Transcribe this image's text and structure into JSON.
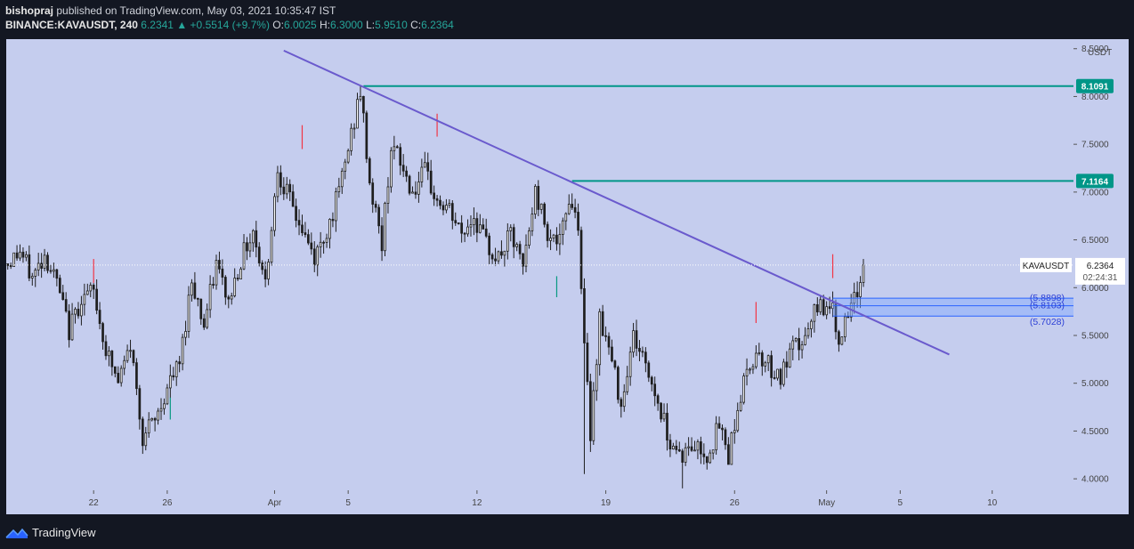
{
  "header": {
    "author": "bishopraj",
    "published_text": "published on TradingView.com, May 03, 2021 10:35:47 IST",
    "symbol": "BINANCE:KAVAUSDT, 240",
    "last": "6.2341",
    "change_arrow": "▲",
    "change": "+0.5514 (+9.7%)",
    "o_label": "O:",
    "o_value": "6.0025",
    "h_label": "H:",
    "h_value": "6.3000",
    "l_label": "L:",
    "l_value": "5.9510",
    "c_label": "C:",
    "c_value": "6.2364"
  },
  "footer": {
    "brand": "TradingView",
    "logo_icon": "tradingview-logo-icon"
  },
  "chart_data": {
    "type": "candlestick",
    "symbol": "KAVAUSDT",
    "currency": "USDT",
    "ylim": [
      3.88,
      8.6
    ],
    "y_ticks": [
      "8.5000",
      "8.0000",
      "7.5000",
      "7.0000",
      "6.5000",
      "6.0000",
      "5.5000",
      "5.0000",
      "4.5000",
      "4.0000"
    ],
    "y_tick_values": [
      8.5,
      8.0,
      7.5,
      7.0,
      6.5,
      6.0,
      5.5,
      5.0,
      4.5,
      4.0
    ],
    "x_ticks": [
      {
        "label": "22",
        "bar": 28
      },
      {
        "label": "26",
        "bar": 52
      },
      {
        "label": "Apr",
        "bar": 87
      },
      {
        "label": "5",
        "bar": 111
      },
      {
        "label": "12",
        "bar": 153
      },
      {
        "label": "19",
        "bar": 195
      },
      {
        "label": "26",
        "bar": 237
      },
      {
        "label": "May",
        "bar": 267
      },
      {
        "label": "5",
        "bar": 291
      },
      {
        "label": "10",
        "bar": 321
      }
    ],
    "x_range": [
      -0.5,
      347.5
    ],
    "bar_count": 280,
    "anchors": [
      [
        0,
        6.25
      ],
      [
        4,
        6.38
      ],
      [
        8,
        6.1
      ],
      [
        12,
        6.35
      ],
      [
        16,
        6.05
      ],
      [
        20,
        5.55
      ],
      [
        24,
        5.9
      ],
      [
        28,
        5.95
      ],
      [
        32,
        5.35
      ],
      [
        36,
        5.0
      ],
      [
        40,
        5.4
      ],
      [
        44,
        4.45
      ],
      [
        48,
        4.6
      ],
      [
        52,
        4.95
      ],
      [
        56,
        5.2
      ],
      [
        60,
        6.1
      ],
      [
        64,
        5.6
      ],
      [
        68,
        6.25
      ],
      [
        72,
        5.85
      ],
      [
        76,
        6.3
      ],
      [
        80,
        6.6
      ],
      [
        84,
        6.05
      ],
      [
        88,
        7.25
      ],
      [
        92,
        6.9
      ],
      [
        96,
        6.6
      ],
      [
        100,
        6.3
      ],
      [
        104,
        6.6
      ],
      [
        108,
        7.0
      ],
      [
        112,
        7.6
      ],
      [
        115,
        8.05
      ],
      [
        118,
        7.1
      ],
      [
        122,
        6.45
      ],
      [
        125,
        7.5
      ],
      [
        128,
        7.3
      ],
      [
        132,
        7.0
      ],
      [
        136,
        7.2
      ],
      [
        140,
        6.9
      ],
      [
        144,
        6.8
      ],
      [
        148,
        6.55
      ],
      [
        152,
        6.75
      ],
      [
        156,
        6.45
      ],
      [
        160,
        6.3
      ],
      [
        164,
        6.55
      ],
      [
        168,
        6.2
      ],
      [
        172,
        7.0
      ],
      [
        176,
        6.6
      ],
      [
        180,
        6.45
      ],
      [
        183,
        6.95
      ],
      [
        186,
        6.7
      ],
      [
        188,
        5.35
      ],
      [
        190,
        4.5
      ],
      [
        193,
        5.7
      ],
      [
        196,
        5.35
      ],
      [
        200,
        4.8
      ],
      [
        204,
        5.5
      ],
      [
        208,
        5.2
      ],
      [
        212,
        4.8
      ],
      [
        216,
        4.4
      ],
      [
        220,
        4.25
      ],
      [
        224,
        4.35
      ],
      [
        228,
        4.25
      ],
      [
        232,
        4.55
      ],
      [
        235,
        4.25
      ],
      [
        237,
        4.6
      ],
      [
        240,
        5.0
      ],
      [
        244,
        5.35
      ],
      [
        248,
        5.2
      ],
      [
        252,
        5.05
      ],
      [
        256,
        5.35
      ],
      [
        260,
        5.45
      ],
      [
        264,
        5.8
      ],
      [
        268,
        5.85
      ],
      [
        271,
        5.5
      ],
      [
        274,
        5.65
      ],
      [
        277,
        5.95
      ],
      [
        279,
        6.2364
      ]
    ],
    "trend_line": {
      "from": [
        90,
        8.48
      ],
      "to": [
        307,
        5.3
      ],
      "color": "#6a5acd"
    },
    "horizontal_lines": [
      {
        "value": 8.1091,
        "label": "8.1091",
        "from_bar": 116,
        "color": "#009688"
      },
      {
        "value": 7.1164,
        "label": "7.1164",
        "from_bar": 184,
        "color": "#009688"
      }
    ],
    "zones": [
      {
        "label": "(5.8898)",
        "value": 5.8898,
        "top": 5.8898,
        "bottom": 5.8
      },
      {
        "label": "(5.8103)",
        "value": 5.8103,
        "top": 5.8,
        "bottom": 5.7028
      },
      {
        "label": "(5.7028)",
        "value": 5.7028,
        "top": 5.7028,
        "bottom": 5.7028
      }
    ],
    "zone_from_bar": 269,
    "zone_color": "#2962ff",
    "marks": [
      {
        "bar": 28,
        "low": 6.05,
        "high": 6.3,
        "color": "#f23645"
      },
      {
        "bar": 53,
        "low": 4.62,
        "high": 4.85,
        "color": "#089981"
      },
      {
        "bar": 96,
        "low": 7.45,
        "high": 7.7,
        "color": "#f23645"
      },
      {
        "bar": 140,
        "low": 7.58,
        "high": 7.82,
        "color": "#f23645"
      },
      {
        "bar": 179,
        "low": 5.9,
        "high": 6.12,
        "color": "#089981"
      },
      {
        "bar": 244,
        "low": 5.63,
        "high": 5.85,
        "color": "#f23645"
      },
      {
        "bar": 269,
        "low": 6.1,
        "high": 6.35,
        "color": "#f23645"
      }
    ],
    "current_price": {
      "symbol_label": "KAVAUSDT",
      "value": 6.2364,
      "label": "6.2364",
      "countdown": "02:24:31"
    }
  }
}
